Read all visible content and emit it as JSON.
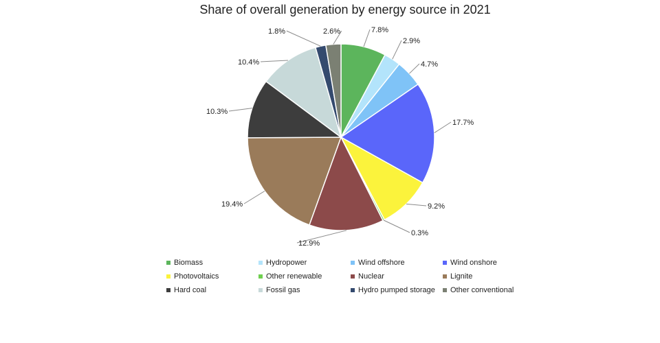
{
  "chart_data": {
    "type": "pie",
    "title": "Share of overall generation by energy source in 2021",
    "slices": [
      {
        "name": "Biomass",
        "value": 7.8,
        "label": "7.8%",
        "color": "#5cb55c"
      },
      {
        "name": "Hydropower",
        "value": 2.9,
        "label": "2.9%",
        "color": "#b3e4fb"
      },
      {
        "name": "Wind offshore",
        "value": 4.7,
        "label": "4.7%",
        "color": "#7fc3f7"
      },
      {
        "name": "Wind onshore",
        "value": 17.7,
        "label": "17.7%",
        "color": "#5a66fa"
      },
      {
        "name": "Photovoltaics",
        "value": 9.2,
        "label": "9.2%",
        "color": "#fbf33c"
      },
      {
        "name": "Other renewable",
        "value": 0.3,
        "label": "0.3%",
        "color": "#6fcf4f"
      },
      {
        "name": "Nuclear",
        "value": 12.9,
        "label": "12.9%",
        "color": "#8c4a4a"
      },
      {
        "name": "Lignite",
        "value": 19.4,
        "label": "19.4%",
        "color": "#9a7b5a"
      },
      {
        "name": "Hard coal",
        "value": 10.3,
        "label": "10.3%",
        "color": "#3d3d3d"
      },
      {
        "name": "Fossil gas",
        "value": 10.4,
        "label": "10.4%",
        "color": "#c7d9d9"
      },
      {
        "name": "Hydro pumped storage",
        "value": 1.8,
        "label": "1.8%",
        "color": "#344a6e"
      },
      {
        "name": "Other conventional",
        "value": 2.6,
        "label": "2.6%",
        "color": "#7b8073"
      }
    ],
    "legend_position": "bottom"
  }
}
